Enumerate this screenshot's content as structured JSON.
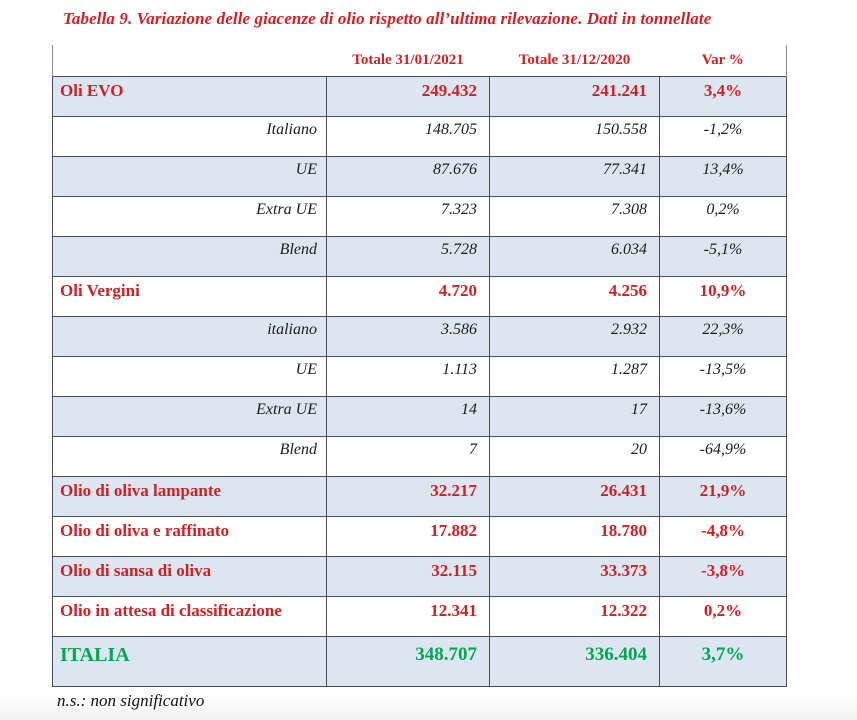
{
  "title": "Tabella 9. Variazione delle giacenze di olio rispetto all’ultima rilevazione. Dati in tonnellate",
  "footnote": "n.s.: non significativo",
  "colors": {
    "heading_red": "#cf2026",
    "total_green": "#00a651",
    "row_shade_blue": "#dce6f1",
    "grid_line": "#4d4d4d"
  },
  "table": {
    "columns": [
      "",
      "Totale 31/01/2021",
      "Totale 31/12/2020",
      "Var %"
    ],
    "rows": [
      {
        "label": "Oli EVO",
        "v1": "249.432",
        "v2": "241.241",
        "var": "3,4%",
        "type": "category",
        "shade": true
      },
      {
        "label": "Italiano",
        "v1": "148.705",
        "v2": "150.558",
        "var": "-1,2%",
        "type": "sub",
        "shade": false
      },
      {
        "label": "UE",
        "v1": "87.676",
        "v2": "77.341",
        "var": "13,4%",
        "type": "sub",
        "shade": true
      },
      {
        "label": "Extra UE",
        "v1": "7.323",
        "v2": "7.308",
        "var": "0,2%",
        "type": "sub",
        "shade": false
      },
      {
        "label": "Blend",
        "v1": "5.728",
        "v2": "6.034",
        "var": "-5,1%",
        "type": "sub",
        "shade": true
      },
      {
        "label": "Oli Vergini",
        "v1": "4.720",
        "v2": "4.256",
        "var": "10,9%",
        "type": "category",
        "shade": false
      },
      {
        "label": "italiano",
        "v1": "3.586",
        "v2": "2.932",
        "var": "22,3%",
        "type": "sub",
        "shade": true
      },
      {
        "label": "UE",
        "v1": "1.113",
        "v2": "1.287",
        "var": "-13,5%",
        "type": "sub",
        "shade": false
      },
      {
        "label": "Extra UE",
        "v1": "14",
        "v2": "17",
        "var": "-13,6%",
        "type": "sub",
        "shade": true
      },
      {
        "label": "Blend",
        "v1": "7",
        "v2": "20",
        "var": "-64,9%",
        "type": "sub",
        "shade": false
      },
      {
        "label": "Olio di oliva lampante",
        "v1": "32.217",
        "v2": "26.431",
        "var": "21,9%",
        "type": "category",
        "shade": true
      },
      {
        "label": "Olio di oliva e raffinato",
        "v1": "17.882",
        "v2": "18.780",
        "var": "-4,8%",
        "type": "category",
        "shade": false
      },
      {
        "label": "Olio di sansa di oliva",
        "v1": "32.115",
        "v2": "33.373",
        "var": "-3,8%",
        "type": "category",
        "shade": true
      },
      {
        "label": "Olio in attesa di classificazione",
        "v1": "12.341",
        "v2": "12.322",
        "var": "0,2%",
        "type": "category",
        "shade": false
      },
      {
        "label": "ITALIA",
        "v1": "348.707",
        "v2": "336.404",
        "var": "3,7%",
        "type": "total",
        "shade": true
      }
    ]
  }
}
